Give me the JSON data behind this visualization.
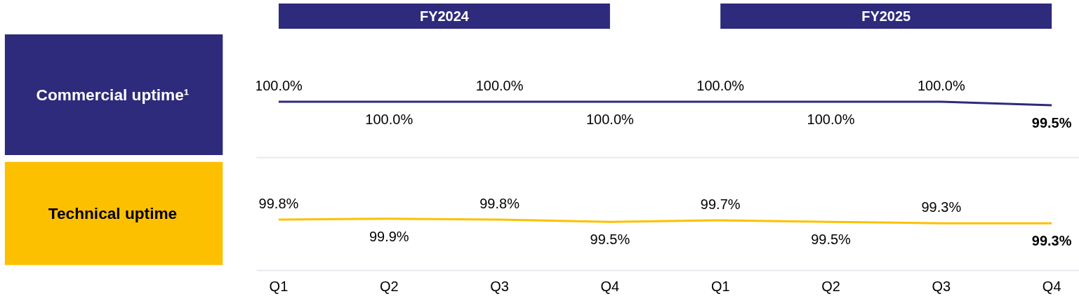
{
  "chart_data": [
    {
      "type": "line",
      "title": "Commercial uptime¹",
      "categories": [
        null,
        null,
        null,
        null,
        null,
        null,
        null,
        null
      ],
      "series": [
        {
          "color": "#2e2a7c",
          "values": [
            100.0,
            100.0,
            100.0,
            100.0,
            100.0,
            100.0,
            100.0,
            99.5
          ],
          "value_labels": [
            "100.0%",
            "100.0%",
            "100.0%",
            "100.0%",
            "100.0%",
            "100.0%",
            "100.0%",
            "99.5%"
          ]
        }
      ],
      "annotations": [
        "FY2024",
        "FY2025"
      ]
    },
    {
      "type": "line",
      "title": "Technical uptime",
      "categories": [
        "Q1",
        "Q2",
        "Q3",
        "Q4",
        "Q1",
        "Q2",
        "Q3",
        "Q4"
      ],
      "tick_labels": "x",
      "series": [
        {
          "color": "#fdc000",
          "values": [
            99.8,
            99.9,
            99.8,
            99.5,
            99.7,
            99.5,
            99.3,
            99.3
          ],
          "value_labels": [
            "99.8%",
            "99.9%",
            "99.8%",
            "99.5%",
            "99.7%",
            "99.5%",
            "99.3%",
            "99.3%"
          ]
        }
      ]
    }
  ]
}
